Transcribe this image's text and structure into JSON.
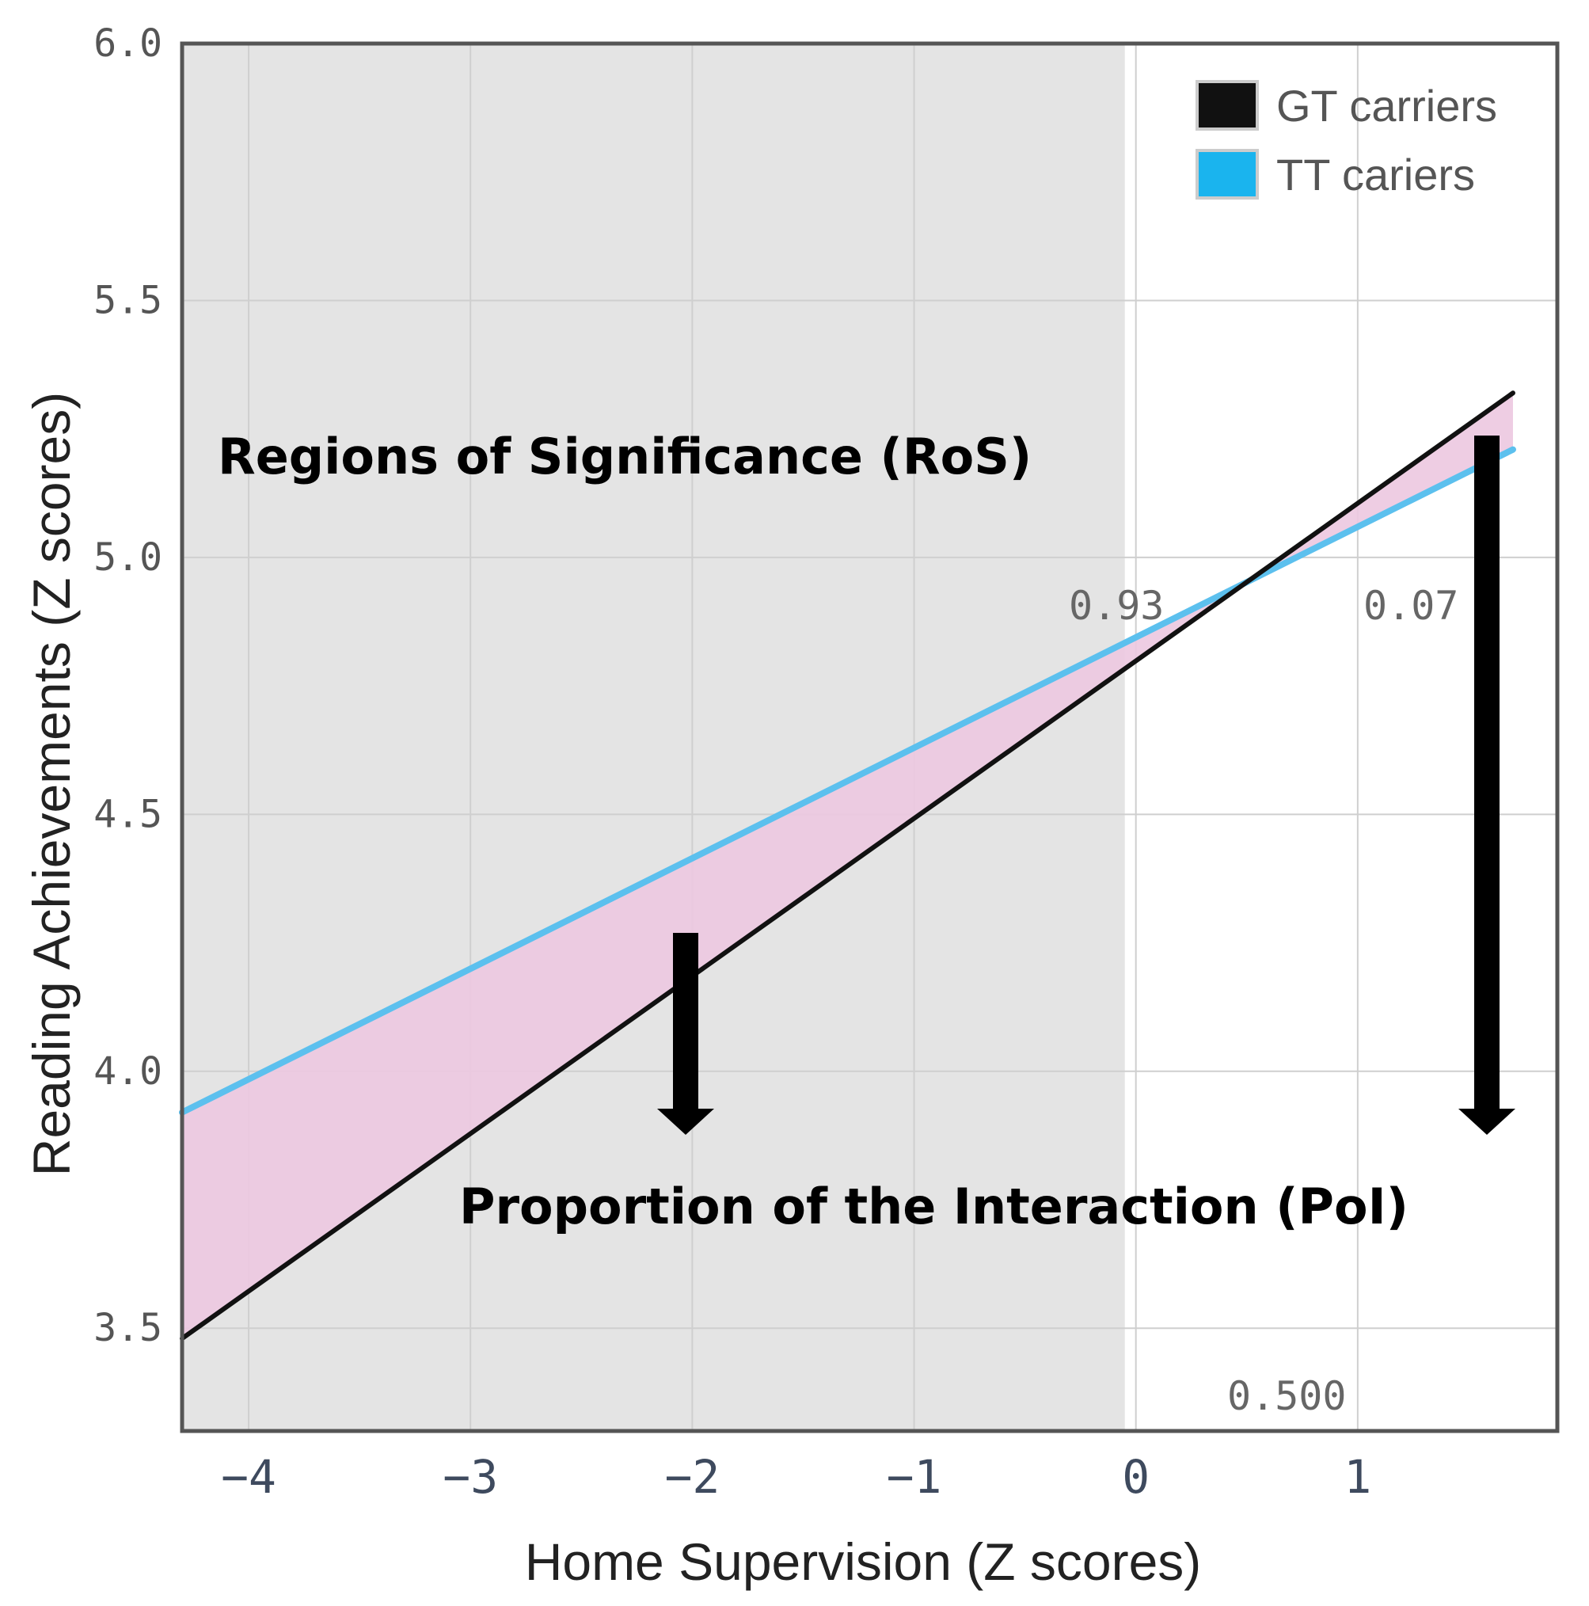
{
  "chart_data": {
    "type": "line",
    "xlabel": "Home Supervision (Z scores)",
    "ylabel": "Reading Achievements (Z scores)",
    "xlim": [
      -4.3,
      1.9
    ],
    "ylim": [
      3.3,
      6.0
    ],
    "x_ticks": [
      -4,
      -3,
      -2,
      -1,
      0,
      1
    ],
    "x_tick_labels": [
      "−4",
      "−3",
      "−2",
      "−1",
      "0",
      "1"
    ],
    "y_ticks": [
      3.5,
      4.0,
      4.5,
      5.0,
      5.5,
      6.0
    ],
    "y_tick_labels": [
      "3.5",
      "4.0",
      "4.5",
      "5.0",
      "5.5",
      "6.0"
    ],
    "grid": true,
    "legend_position": "top-right",
    "shaded_region": {
      "x_start": -4.3,
      "x_end": -0.05,
      "color": "#e4e4e4"
    },
    "interaction_fill_color": "#ecc8e0",
    "series": [
      {
        "name": "GT carriers",
        "color": "#111111",
        "x": [
          -4.3,
          1.7
        ],
        "y": [
          3.48,
          5.32
        ]
      },
      {
        "name": "TT cariers",
        "color": "#5cc0ee",
        "x": [
          -4.3,
          1.7
        ],
        "y": [
          3.92,
          5.21
        ]
      }
    ],
    "annotations": {
      "ros_label": "Regions of Significance (RoS)",
      "poi_label": "Proportion of the Interaction (PoI)",
      "left_value": "0.93",
      "right_value": "0.07",
      "crossover_value": "0.500"
    }
  },
  "colors": {
    "arrow": "#000000",
    "frame": "#555555",
    "plot_background": "#ffffff"
  }
}
